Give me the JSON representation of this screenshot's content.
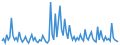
{
  "chart_data": {
    "type": "line",
    "color": "#3d8fd6",
    "tick_labels": false,
    "values": [
      18,
      22,
      15,
      30,
      20,
      25,
      62,
      28,
      20,
      24,
      18,
      35,
      22,
      16,
      20,
      26,
      18,
      14,
      22,
      30,
      19,
      24,
      17,
      15,
      20,
      18,
      28,
      22,
      16,
      14,
      19,
      92,
      30,
      20,
      70,
      25,
      55,
      85,
      40,
      28,
      60,
      35,
      22,
      48,
      30,
      20,
      26,
      18,
      24,
      20,
      30,
      22,
      18,
      40,
      24,
      20,
      28,
      35,
      22,
      18,
      16,
      45,
      20,
      38,
      24,
      18,
      26,
      20,
      22,
      18,
      52,
      24,
      20,
      18,
      16
    ]
  }
}
